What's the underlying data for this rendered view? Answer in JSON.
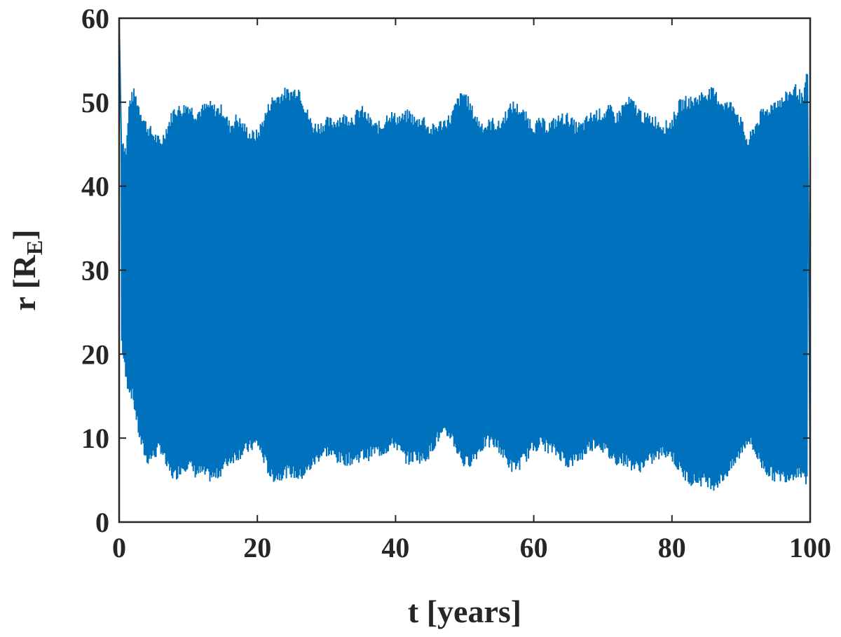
{
  "chart_data": {
    "type": "line",
    "title": "",
    "xlabel": "t [years]",
    "ylabel": {
      "main": "r [R",
      "subscript": "E",
      "close": "]"
    },
    "xlim": [
      0,
      100
    ],
    "ylim": [
      0,
      60
    ],
    "xticks": [
      0,
      20,
      40,
      60,
      80,
      100
    ],
    "yticks": [
      0,
      10,
      20,
      30,
      40,
      50,
      60
    ],
    "xtick_labels": [
      "0",
      "20",
      "40",
      "60",
      "80",
      "100"
    ],
    "ytick_labels": [
      "0",
      "10",
      "20",
      "30",
      "40",
      "50",
      "60"
    ],
    "grid": false,
    "legend": "none",
    "colors": {
      "series": "#0072BD",
      "axis": "#262626",
      "background": "#ffffff"
    },
    "series": [
      {
        "style": "dense oscillation",
        "color": "#0072BD",
        "start": {
          "t": 0,
          "r": 60
        },
        "end": {
          "t": 100,
          "r": 4.5
        },
        "upper_envelope": [
          [
            0.3,
            46
          ],
          [
            1,
            44
          ],
          [
            1.5,
            50
          ],
          [
            2.2,
            51
          ],
          [
            3,
            49
          ],
          [
            4,
            47
          ],
          [
            5,
            46
          ],
          [
            6,
            45
          ],
          [
            7,
            47
          ],
          [
            8,
            49
          ],
          [
            9,
            49
          ],
          [
            10,
            49.5
          ],
          [
            11,
            48.5
          ],
          [
            12,
            49
          ],
          [
            13,
            49.5
          ],
          [
            14,
            49
          ],
          [
            15,
            49
          ],
          [
            16,
            47
          ],
          [
            17,
            48
          ],
          [
            18,
            47
          ],
          [
            19,
            46
          ],
          [
            20,
            46
          ],
          [
            21,
            48
          ],
          [
            22,
            50
          ],
          [
            23,
            50.5
          ],
          [
            24,
            51
          ],
          [
            25,
            51
          ],
          [
            26,
            51.5
          ],
          [
            27,
            49
          ],
          [
            28,
            47
          ],
          [
            29,
            47
          ],
          [
            30,
            47.5
          ],
          [
            31,
            47.5
          ],
          [
            32,
            48
          ],
          [
            33,
            48
          ],
          [
            34,
            48
          ],
          [
            35,
            49
          ],
          [
            36,
            48
          ],
          [
            37,
            47
          ],
          [
            38,
            47
          ],
          [
            39,
            48.5
          ],
          [
            40,
            48
          ],
          [
            41,
            48
          ],
          [
            42,
            48.5
          ],
          [
            43,
            47.5
          ],
          [
            44,
            48
          ],
          [
            45,
            46.5
          ],
          [
            46,
            47
          ],
          [
            47,
            47.5
          ],
          [
            48,
            48
          ],
          [
            49,
            50
          ],
          [
            50,
            51
          ],
          [
            51,
            49
          ],
          [
            52,
            47.5
          ],
          [
            53,
            47
          ],
          [
            54,
            47.5
          ],
          [
            55,
            47
          ],
          [
            56,
            48.5
          ],
          [
            57,
            49.5
          ],
          [
            58,
            49
          ],
          [
            59,
            48
          ],
          [
            60,
            47
          ],
          [
            61,
            47.5
          ],
          [
            62,
            47
          ],
          [
            63,
            47.5
          ],
          [
            64,
            48
          ],
          [
            65,
            48
          ],
          [
            66,
            47
          ],
          [
            67,
            47
          ],
          [
            68,
            48
          ],
          [
            69,
            48.5
          ],
          [
            70,
            48.5
          ],
          [
            71,
            49
          ],
          [
            72,
            48
          ],
          [
            73,
            49.5
          ],
          [
            74,
            50
          ],
          [
            75,
            49
          ],
          [
            76,
            48
          ],
          [
            77,
            48
          ],
          [
            78,
            47.5
          ],
          [
            79,
            47
          ],
          [
            80,
            47.5
          ],
          [
            81,
            49.5
          ],
          [
            82,
            50
          ],
          [
            83,
            50
          ],
          [
            84,
            50.5
          ],
          [
            85,
            51
          ],
          [
            86,
            51
          ],
          [
            87,
            50
          ],
          [
            88,
            49.5
          ],
          [
            89,
            49.5
          ],
          [
            90,
            47.5
          ],
          [
            91,
            45
          ],
          [
            92,
            47
          ],
          [
            93,
            48.5
          ],
          [
            94,
            49
          ],
          [
            95,
            50
          ],
          [
            96,
            50
          ],
          [
            97,
            51
          ],
          [
            98,
            51.5
          ],
          [
            99,
            50
          ],
          [
            99.6,
            53.5
          ]
        ],
        "lower_envelope": [
          [
            0.3,
            22
          ],
          [
            1,
            17
          ],
          [
            2,
            15
          ],
          [
            3,
            10
          ],
          [
            4,
            7.5
          ],
          [
            5,
            8
          ],
          [
            6,
            9
          ],
          [
            7,
            6.5
          ],
          [
            8,
            5.5
          ],
          [
            9,
            6.5
          ],
          [
            10,
            7
          ],
          [
            11,
            6
          ],
          [
            12,
            6
          ],
          [
            13,
            5.5
          ],
          [
            14,
            5.5
          ],
          [
            15,
            6.5
          ],
          [
            16,
            7.5
          ],
          [
            17,
            8
          ],
          [
            18,
            8.5
          ],
          [
            19,
            9
          ],
          [
            20,
            9.5
          ],
          [
            21,
            7.5
          ],
          [
            22,
            5.5
          ],
          [
            23,
            5.5
          ],
          [
            24,
            6
          ],
          [
            25,
            6
          ],
          [
            26,
            5.5
          ],
          [
            27,
            6
          ],
          [
            28,
            7
          ],
          [
            29,
            8
          ],
          [
            30,
            8.5
          ],
          [
            31,
            8
          ],
          [
            32,
            7.5
          ],
          [
            33,
            7.5
          ],
          [
            34,
            7.5
          ],
          [
            35,
            8
          ],
          [
            36,
            8
          ],
          [
            37,
            8.5
          ],
          [
            38,
            8.5
          ],
          [
            39,
            9
          ],
          [
            40,
            9.5
          ],
          [
            41,
            8
          ],
          [
            42,
            7.5
          ],
          [
            43,
            8
          ],
          [
            44,
            7.5
          ],
          [
            45,
            8.5
          ],
          [
            46,
            10
          ],
          [
            47,
            10.5
          ],
          [
            48,
            10.5
          ],
          [
            49,
            8.5
          ],
          [
            50,
            7
          ],
          [
            51,
            7.5
          ],
          [
            52,
            8.5
          ],
          [
            53,
            9.5
          ],
          [
            54,
            9.5
          ],
          [
            55,
            9
          ],
          [
            56,
            7.5
          ],
          [
            57,
            6.5
          ],
          [
            58,
            7
          ],
          [
            59,
            8
          ],
          [
            60,
            9
          ],
          [
            61,
            9.5
          ],
          [
            62,
            9
          ],
          [
            63,
            8.5
          ],
          [
            64,
            8
          ],
          [
            65,
            7
          ],
          [
            66,
            7.5
          ],
          [
            67,
            8
          ],
          [
            68,
            9
          ],
          [
            69,
            9.5
          ],
          [
            70,
            9
          ],
          [
            71,
            8
          ],
          [
            72,
            7.5
          ],
          [
            73,
            7.5
          ],
          [
            74,
            7
          ],
          [
            75,
            6.5
          ],
          [
            76,
            7
          ],
          [
            77,
            7.5
          ],
          [
            78,
            8
          ],
          [
            79,
            8.5
          ],
          [
            80,
            8
          ],
          [
            81,
            6.5
          ],
          [
            82,
            5.5
          ],
          [
            83,
            5
          ],
          [
            84,
            5
          ],
          [
            85,
            5
          ],
          [
            86,
            4.5
          ],
          [
            87,
            5
          ],
          [
            88,
            6
          ],
          [
            89,
            7
          ],
          [
            90,
            8.5
          ],
          [
            91,
            10
          ],
          [
            92,
            8.5
          ],
          [
            93,
            7
          ],
          [
            94,
            6
          ],
          [
            95,
            5.5
          ],
          [
            96,
            5.5
          ],
          [
            97,
            5.5
          ],
          [
            98,
            6
          ],
          [
            99,
            6
          ],
          [
            99.6,
            4.5
          ]
        ]
      }
    ]
  }
}
